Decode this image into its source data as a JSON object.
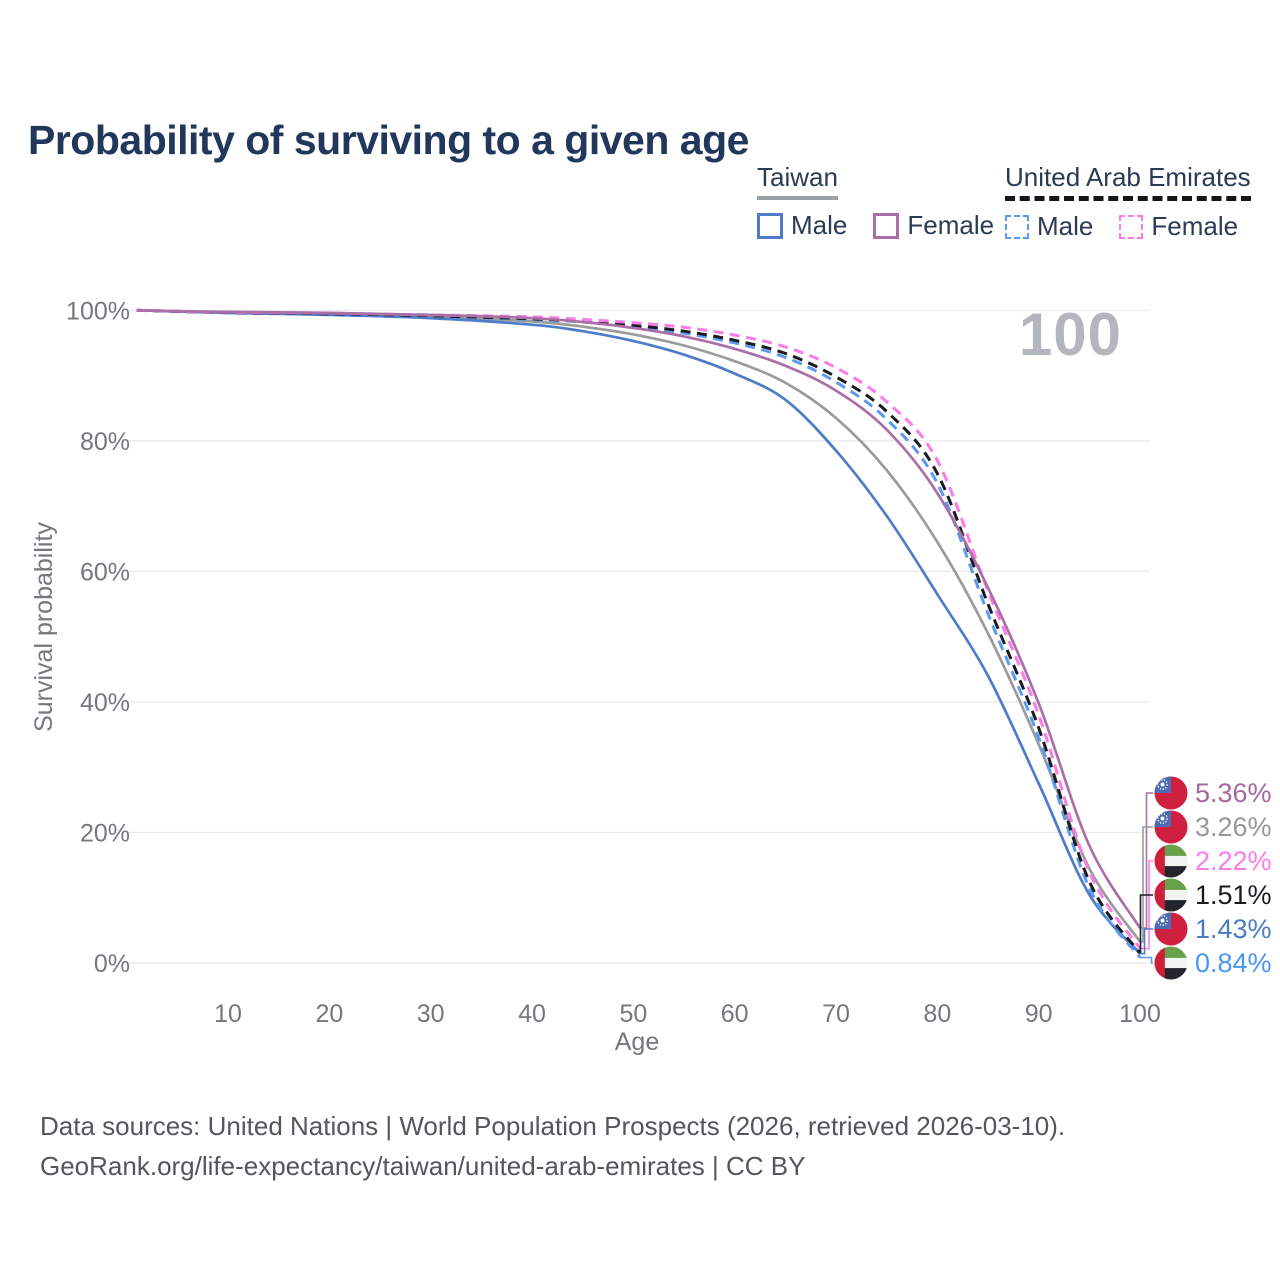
{
  "title": "Probability of surviving to a given age",
  "watermark_age": "100",
  "legend": {
    "groups": [
      {
        "name": "Taiwan",
        "underline": "solid",
        "items": [
          {
            "label": "Male",
            "series": 4
          },
          {
            "label": "Female",
            "series": 0
          }
        ]
      },
      {
        "name": "United Arab Emirates",
        "underline": "dashed",
        "items": [
          {
            "label": "Male",
            "series": 5
          },
          {
            "label": "Female",
            "series": 2
          }
        ]
      }
    ]
  },
  "chart_data": {
    "type": "line",
    "title": "Probability of surviving to a given age",
    "xlabel": "Age",
    "ylabel": "Survival probability",
    "xlim": [
      1,
      100
    ],
    "ylim": [
      0,
      100
    ],
    "grid": "horizontal",
    "x_ticks": [
      10,
      20,
      30,
      40,
      50,
      60,
      70,
      80,
      90,
      100
    ],
    "y_ticks": [
      0,
      20,
      40,
      60,
      80,
      100
    ],
    "y_tick_labels": [
      "0%",
      "20%",
      "40%",
      "60%",
      "80%",
      "100%"
    ],
    "x": [
      1,
      10,
      20,
      30,
      40,
      45,
      50,
      55,
      60,
      65,
      70,
      75,
      80,
      85,
      90,
      95,
      100
    ],
    "series": [
      {
        "name": "Taiwan Female",
        "group": "Taiwan",
        "sex": "Female",
        "flag": "taiwan",
        "color": "#ab6fa7",
        "dashed": false,
        "end_label": "5.36%",
        "label_color": "#a4689f",
        "values": [
          100,
          99.75,
          99.6,
          99.3,
          98.8,
          98.2,
          97.3,
          96.0,
          94.1,
          91.5,
          87.7,
          81.7,
          72.0,
          57.5,
          39.8,
          18.0,
          5.36
        ]
      },
      {
        "name": "Taiwan Total",
        "group": "Taiwan",
        "sex": "Both",
        "flag": "taiwan",
        "color": "#9b9b9b",
        "dashed": false,
        "end_label": "3.26%",
        "label_color": "#97979b",
        "values": [
          100,
          99.7,
          99.45,
          99.05,
          98.3,
          97.5,
          96.3,
          94.6,
          92.2,
          88.9,
          83.5,
          75.5,
          64.5,
          50.5,
          33.5,
          14.5,
          3.26
        ]
      },
      {
        "name": "United Arab Emirates Female",
        "group": "United Arab Emirates",
        "sex": "Female",
        "flag": "uae",
        "color": "#fb7ce8",
        "dashed": true,
        "end_label": "2.22%",
        "label_color": "#fb7ce8",
        "values": [
          100,
          99.7,
          99.55,
          99.3,
          99.0,
          98.6,
          98.1,
          97.4,
          96.2,
          94.4,
          91.2,
          86.0,
          77.0,
          57.0,
          38.0,
          14.0,
          2.22
        ]
      },
      {
        "name": "United Arab Emirates Total",
        "group": "United Arab Emirates",
        "sex": "Both",
        "flag": "uae",
        "color": "#1b1c20",
        "dashed": true,
        "end_label": "1.51%",
        "label_color": "#1b1c20",
        "values": [
          100,
          99.65,
          99.45,
          99.15,
          98.7,
          98.3,
          97.7,
          96.8,
          95.4,
          93.4,
          89.8,
          84.5,
          75.0,
          55.0,
          36.0,
          12.5,
          1.51
        ]
      },
      {
        "name": "Taiwan Male",
        "group": "Taiwan",
        "sex": "Male",
        "flag": "taiwan",
        "color": "#4d7cc9",
        "dashed": false,
        "end_label": "1.43%",
        "label_color": "#4a7bc4",
        "values": [
          100,
          99.6,
          99.3,
          98.8,
          97.8,
          96.8,
          95.3,
          93.2,
          90.3,
          86.3,
          78.5,
          68.5,
          56.5,
          44.0,
          27.5,
          10.5,
          1.43
        ]
      },
      {
        "name": "United Arab Emirates Male",
        "group": "United Arab Emirates",
        "sex": "Male",
        "flag": "uae",
        "color": "#5b9af2",
        "dashed": true,
        "end_label": "0.84%",
        "label_color": "#4b96f3",
        "values": [
          100,
          99.6,
          99.4,
          99.1,
          98.6,
          98.2,
          97.5,
          96.5,
          95.0,
          92.8,
          89.0,
          83.3,
          73.5,
          53.5,
          34.5,
          11.5,
          0.84
        ]
      }
    ]
  },
  "footer": {
    "line1": "Data sources: United Nations | World Population Prospects (2026, retrieved 2026-03-10).",
    "line2": "GeoRank.org/life-expectancy/taiwan/united-arab-emirates | CC BY"
  },
  "colors": {
    "title": "#21375c",
    "axis_text": "#76777c",
    "gridline": "#e8e9eb",
    "watermark": "#b3b6bc",
    "footer": "#53565b",
    "legend_text": "#2b3a55"
  }
}
